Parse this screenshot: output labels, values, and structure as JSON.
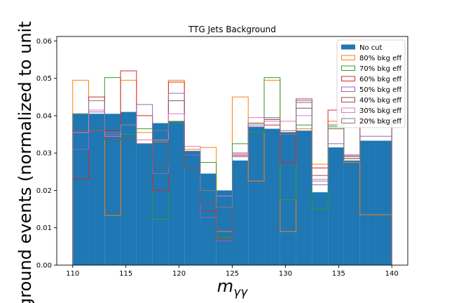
{
  "chart_data": {
    "type": "bar",
    "title": "TTG Jets Background",
    "xlabel": "m_γγ",
    "xlabel_main": "m",
    "xlabel_sub": "γγ",
    "ylabel": "ground events (normalized to unit",
    "xlim": [
      108.5,
      141.5
    ],
    "ylim": [
      0.0,
      0.0612
    ],
    "x_ticks": [
      "110",
      "115",
      "120",
      "125",
      "130",
      "135",
      "140"
    ],
    "y_ticks": [
      "0.00",
      "0.01",
      "0.02",
      "0.03",
      "0.04",
      "0.05",
      "0.06"
    ],
    "bin_edges": [
      110,
      111.5,
      113,
      114.5,
      116,
      117.5,
      119,
      120.5,
      122,
      123.5,
      125,
      126.5,
      128,
      129.5,
      131,
      132.5,
      134,
      135.5,
      137,
      138.5,
      140
    ],
    "legend_position": "top-right",
    "series": [
      {
        "name": "No cut",
        "style": "filled",
        "color": "#1f77b4",
        "values": [
          0.0405,
          0.0405,
          0.0405,
          0.041,
          0.0325,
          0.038,
          0.0385,
          0.0305,
          0.0245,
          0.02,
          0.028,
          0.037,
          0.0365,
          0.0355,
          0.036,
          0.0195,
          0.0315,
          0.028,
          0.0333,
          0.0333
        ]
      },
      {
        "name": "80% bkg eff",
        "style": "step",
        "color": "#ff7f0e",
        "values": [
          0.0495,
          0.036,
          0.0133,
          0.0495,
          0.0355,
          0.033,
          0.0495,
          0.031,
          0.0315,
          0.009,
          0.045,
          0.0225,
          0.0495,
          0.009,
          0.0365,
          0.027,
          0.0385,
          0.0275,
          0.0135,
          0.0135
        ]
      },
      {
        "name": "70% bkg eff",
        "style": "step",
        "color": "#2ca02c",
        "values": [
          0.0405,
          0.0415,
          0.0502,
          0.035,
          0.0365,
          0.0123,
          0.038,
          0.0305,
          0.0275,
          0.0075,
          0.0325,
          0.0355,
          0.0502,
          0.0175,
          0.0375,
          0.015,
          0.037,
          0.0285,
          0.042,
          0.042
        ]
      },
      {
        "name": "60% bkg eff",
        "style": "step",
        "color": "#d62728",
        "values": [
          0.023,
          0.045,
          0.036,
          0.052,
          0.04,
          0.02,
          0.049,
          0.026,
          0.0145,
          0.0065,
          0.0295,
          0.038,
          0.0375,
          0.0275,
          0.0445,
          0.026,
          0.0415,
          0.0295,
          0.039,
          0.039
        ]
      },
      {
        "name": "50% bkg eff",
        "style": "step",
        "color": "#9467bd",
        "values": [
          0.031,
          0.041,
          0.035,
          0.0375,
          0.043,
          0.0245,
          0.046,
          0.0295,
          0.0128,
          0.0065,
          0.029,
          0.037,
          0.039,
          0.035,
          0.044,
          0.0215,
          0.0325,
          0.0293,
          0.0345,
          0.0345
        ]
      },
      {
        "name": "40% bkg eff",
        "style": "step",
        "color": "#8c564b",
        "values": [
          0.036,
          0.036,
          0.0335,
          0.034,
          0.0325,
          0.0265,
          0.044,
          0.026,
          0.0165,
          0.007,
          0.03,
          0.038,
          0.039,
          0.0355,
          0.042,
          0.024,
          0.0365,
          0.0285,
          0.038,
          0.038
        ]
      },
      {
        "name": "30% bkg eff",
        "style": "step",
        "color": "#e377c2",
        "values": [
          0.0355,
          0.0415,
          0.0345,
          0.0375,
          0.0335,
          0.0335,
          0.0405,
          0.0318,
          0.02,
          0.0185,
          0.0293,
          0.0395,
          0.0385,
          0.0385,
          0.04,
          0.023,
          0.0375,
          0.0295,
          0.041,
          0.041
        ]
      },
      {
        "name": "20% bkg eff",
        "style": "step",
        "color": "#7f7f7f",
        "values": [
          0.0405,
          0.044,
          0.0355,
          0.0375,
          0.0325,
          0.036,
          0.0385,
          0.0305,
          0.02,
          0.0155,
          0.03,
          0.0375,
          0.0395,
          0.036,
          0.0435,
          0.0225,
          0.0375,
          0.029,
          0.0385,
          0.0385
        ]
      }
    ]
  }
}
